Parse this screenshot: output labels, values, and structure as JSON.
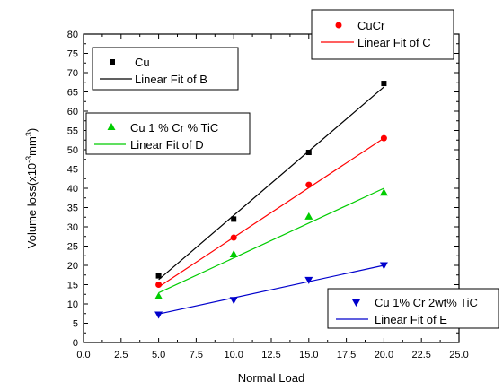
{
  "chart_data": {
    "type": "scatter",
    "xlabel": "Normal Load",
    "ylabel": "Volume loss(x10",
    "ylabel_sup": "-3",
    "ylabel_tail": "mm",
    "ylabel_sup2": "3",
    "ylabel_close": ")",
    "xlim": [
      0,
      25
    ],
    "ylim": [
      0,
      80
    ],
    "x_ticks": [
      "0.0",
      "2.5",
      "5.0",
      "7.5",
      "10.0",
      "12.5",
      "15.0",
      "17.5",
      "20.0",
      "22.5",
      "25.0"
    ],
    "y_ticks": [
      "0",
      "5",
      "10",
      "15",
      "20",
      "25",
      "30",
      "35",
      "40",
      "45",
      "50",
      "55",
      "60",
      "65",
      "70",
      "75",
      "80"
    ],
    "grid": false,
    "series": [
      {
        "name": "Cu",
        "fit_name": "Linear Fit of B",
        "marker": "square",
        "color": "#000000",
        "x": [
          5,
          10,
          15,
          20
        ],
        "y": [
          17.3,
          32.0,
          49.3,
          67.2
        ],
        "fit": [
          [
            5,
            16.3
          ],
          [
            20,
            66.3
          ]
        ]
      },
      {
        "name": "CuCr",
        "fit_name": "Linear Fit of C",
        "marker": "circle",
        "color": "#ff0000",
        "x": [
          5,
          10,
          15,
          20
        ],
        "y": [
          15.0,
          27.2,
          40.9,
          53.0
        ],
        "fit": [
          [
            5,
            14.4
          ],
          [
            20,
            53.0
          ]
        ]
      },
      {
        "name": "Cu 1 % Cr % TiC",
        "fit_name": "Linear Fit of D",
        "marker": "triangle-up",
        "color": "#00cc00",
        "x": [
          5,
          10,
          15,
          20
        ],
        "y": [
          12.0,
          22.9,
          32.7,
          38.9
        ],
        "fit": [
          [
            5,
            12.9
          ],
          [
            20,
            40.0
          ]
        ]
      },
      {
        "name": "Cu 1% Cr 2wt% TiC",
        "fit_name": "Linear Fit of E",
        "marker": "triangle-down",
        "color": "#0000cc",
        "x": [
          5,
          10,
          15,
          20
        ],
        "y": [
          7.2,
          11.0,
          16.2,
          20.0
        ],
        "fit": [
          [
            5,
            7.4
          ],
          [
            20,
            20.0
          ]
        ]
      }
    ]
  }
}
